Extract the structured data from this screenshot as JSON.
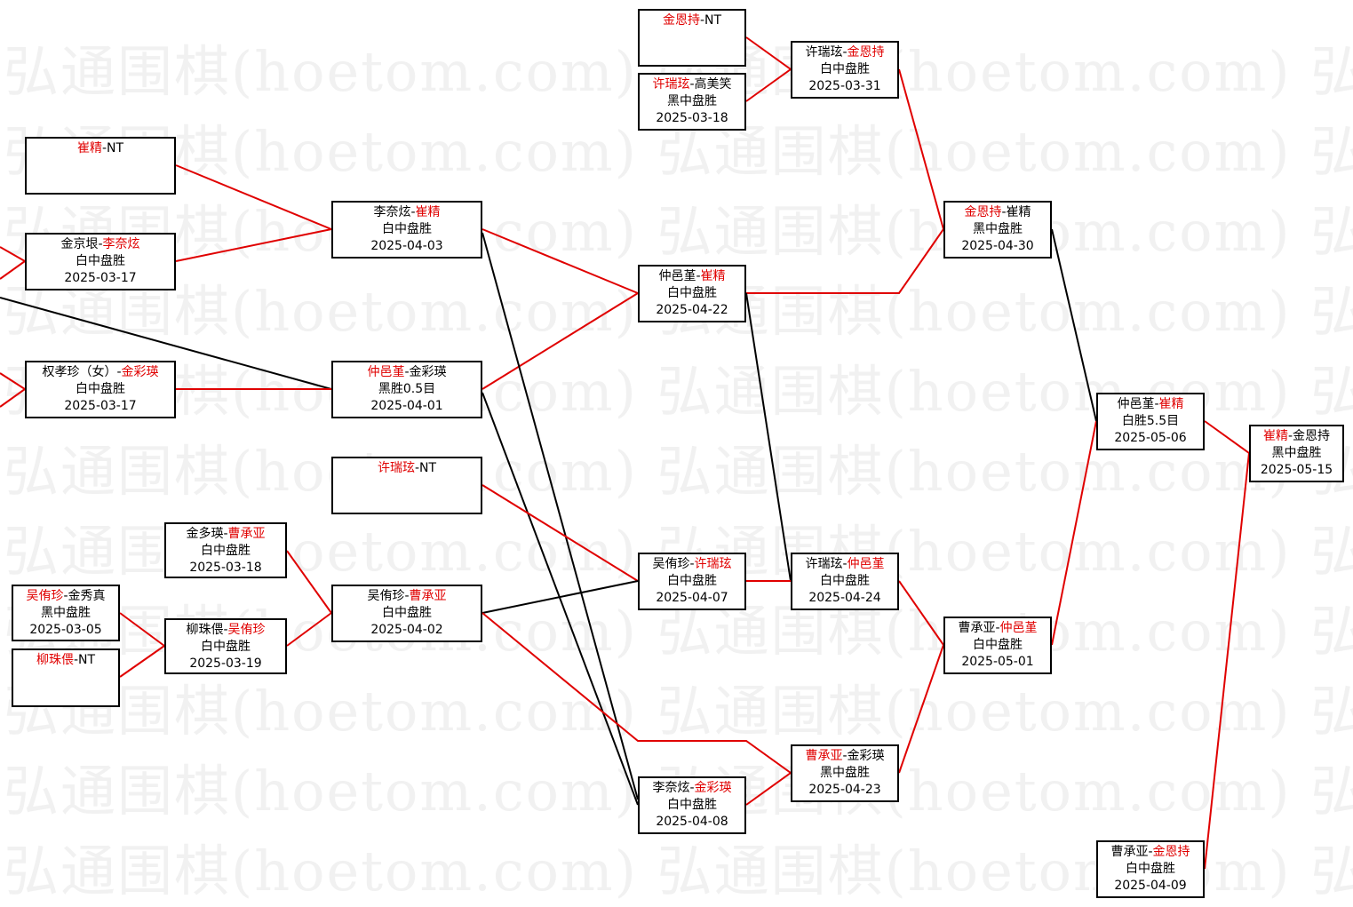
{
  "watermark": "弘通围棋(hoetom.com)",
  "colors": {
    "winner": "#e00000",
    "winner_line": "#e00000",
    "loser_line": "#000000",
    "watermark": "#f1f1f1"
  },
  "matches": [
    {
      "id": "A",
      "p1": "崔精",
      "p2": "NT",
      "winner": 1,
      "result": "",
      "date": ""
    },
    {
      "id": "B",
      "p1": "金京垠",
      "p2": "李奈炫",
      "winner": 2,
      "result": "白中盘胜",
      "date": "2025-03-17"
    },
    {
      "id": "C",
      "p1": "权孝珍（女）",
      "p2": "金彩瑛",
      "winner": 2,
      "result": "白中盘胜",
      "date": "2025-03-17"
    },
    {
      "id": "D",
      "p1": "李奈炫",
      "p2": "崔精",
      "winner": 2,
      "result": "白中盘胜",
      "date": "2025-04-03"
    },
    {
      "id": "E",
      "p1": "仲邑堇",
      "p2": "金彩瑛",
      "winner": 1,
      "result": "黑胜0.5目",
      "date": "2025-04-01"
    },
    {
      "id": "F",
      "p1": "许瑞玹",
      "p2": "NT",
      "winner": 1,
      "result": "",
      "date": ""
    },
    {
      "id": "G",
      "p1": "金多瑛",
      "p2": "曹承亚",
      "winner": 2,
      "result": "白中盘胜",
      "date": "2025-03-18"
    },
    {
      "id": "H",
      "p1": "吴侑珍",
      "p2": "金秀真",
      "winner": 1,
      "result": "黑中盘胜",
      "date": "2025-03-05"
    },
    {
      "id": "I",
      "p1": "柳珠偎",
      "p2": "NT",
      "winner": 1,
      "result": "",
      "date": ""
    },
    {
      "id": "J",
      "p1": "柳珠偎",
      "p2": "吴侑珍",
      "winner": 2,
      "result": "白中盘胜",
      "date": "2025-03-19"
    },
    {
      "id": "K",
      "p1": "吴侑珍",
      "p2": "曹承亚",
      "winner": 2,
      "result": "白中盘胜",
      "date": "2025-04-02"
    },
    {
      "id": "L",
      "p1": "金恩持",
      "p2": "NT",
      "winner": 1,
      "result": "",
      "date": ""
    },
    {
      "id": "M",
      "p1": "许瑞玹",
      "p2": "高美笑",
      "winner": 1,
      "result": "黑中盘胜",
      "date": "2025-03-18"
    },
    {
      "id": "N",
      "p1": "许瑞玹",
      "p2": "金恩持",
      "winner": 2,
      "result": "白中盘胜",
      "date": "2025-03-31"
    },
    {
      "id": "O",
      "p1": "仲邑堇",
      "p2": "崔精",
      "winner": 2,
      "result": "白中盘胜",
      "date": "2025-04-22"
    },
    {
      "id": "P",
      "p1": "吴侑珍",
      "p2": "许瑞玹",
      "winner": 2,
      "result": "白中盘胜",
      "date": "2025-04-07"
    },
    {
      "id": "Q",
      "p1": "李奈炫",
      "p2": "金彩瑛",
      "winner": 2,
      "result": "白中盘胜",
      "date": "2025-04-08"
    },
    {
      "id": "R",
      "p1": "许瑞玹",
      "p2": "仲邑堇",
      "winner": 2,
      "result": "白中盘胜",
      "date": "2025-04-24"
    },
    {
      "id": "S",
      "p1": "曹承亚",
      "p2": "金彩瑛",
      "winner": 1,
      "result": "黑中盘胜",
      "date": "2025-04-23"
    },
    {
      "id": "T",
      "p1": "金恩持",
      "p2": "崔精",
      "winner": 1,
      "result": "黑中盘胜",
      "date": "2025-04-30"
    },
    {
      "id": "U",
      "p1": "曹承亚",
      "p2": "仲邑堇",
      "winner": 2,
      "result": "白中盘胜",
      "date": "2025-05-01"
    },
    {
      "id": "V",
      "p1": "仲邑堇",
      "p2": "崔精",
      "winner": 2,
      "result": "白胜5.5目",
      "date": "2025-05-06"
    },
    {
      "id": "W",
      "p1": "崔精",
      "p2": "金恩持",
      "winner": 1,
      "result": "黑中盘胜",
      "date": "2025-05-15"
    },
    {
      "id": "X",
      "p1": "曹承亚",
      "p2": "金恩持",
      "winner": 2,
      "result": "白中盘胜",
      "date": "2025-04-09"
    }
  ]
}
